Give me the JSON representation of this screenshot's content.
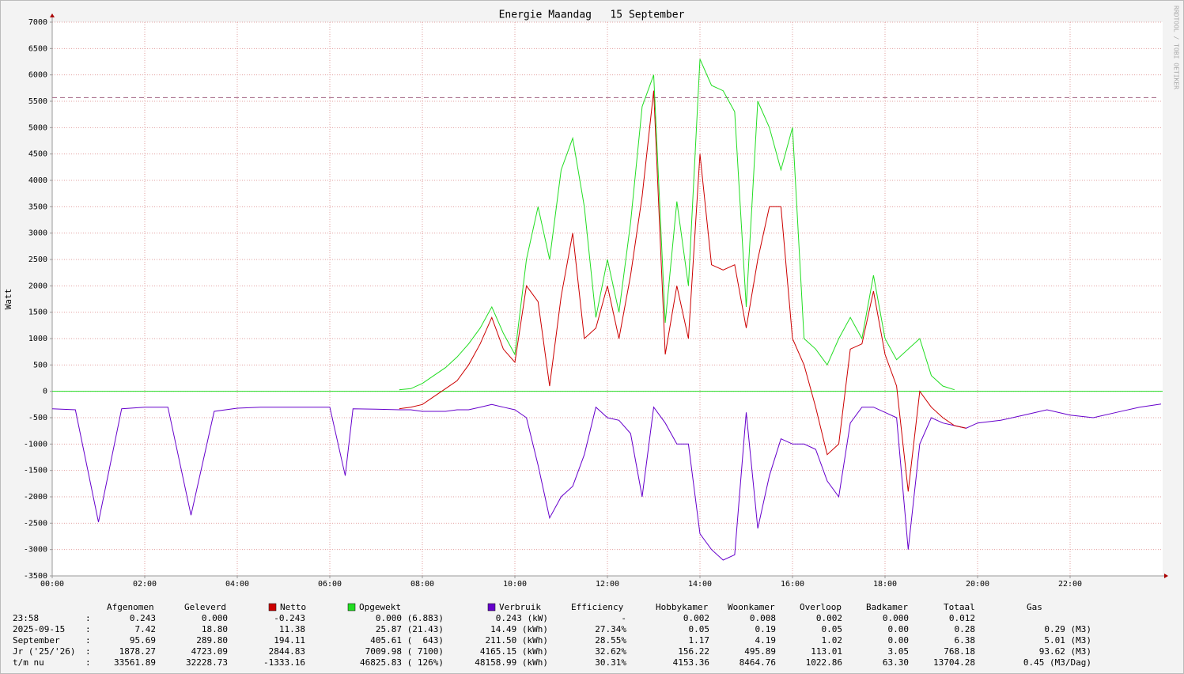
{
  "chart_data": {
    "type": "line",
    "title": "Energie Maandag   15 September",
    "y_label": "Watt",
    "side_label": "RRDTOOL / TOBI OETIKER",
    "x": [
      "00:00",
      "00:30",
      "01:00",
      "01:30",
      "02:00",
      "02:30",
      "03:00",
      "03:30",
      "04:00",
      "04:30",
      "05:00",
      "05:30",
      "06:00",
      "06:20",
      "06:30",
      "07:00",
      "07:30",
      "07:45",
      "08:00",
      "08:15",
      "08:30",
      "08:45",
      "09:00",
      "09:15",
      "09:30",
      "09:45",
      "10:00",
      "10:15",
      "10:30",
      "10:45",
      "11:00",
      "11:15",
      "11:30",
      "11:45",
      "12:00",
      "12:15",
      "12:30",
      "12:45",
      "13:00",
      "13:15",
      "13:30",
      "13:45",
      "14:00",
      "14:15",
      "14:30",
      "14:45",
      "15:00",
      "15:15",
      "15:30",
      "15:45",
      "16:00",
      "16:15",
      "16:30",
      "16:45",
      "17:00",
      "17:15",
      "17:30",
      "17:45",
      "18:00",
      "18:15",
      "18:30",
      "18:45",
      "19:00",
      "19:15",
      "19:30",
      "19:45",
      "20:00",
      "20:30",
      "21:00",
      "21:30",
      "22:00",
      "22:30",
      "23:00",
      "23:30",
      "23:58"
    ],
    "series": [
      {
        "name": "Netto",
        "color": "#cc0000",
        "values": [
          null,
          null,
          null,
          null,
          null,
          null,
          null,
          null,
          null,
          null,
          null,
          null,
          null,
          null,
          null,
          null,
          -330,
          -300,
          -250,
          -100,
          50,
          200,
          500,
          900,
          1400,
          800,
          550,
          2000,
          1700,
          100,
          1800,
          3000,
          1000,
          1200,
          2000,
          1000,
          2200,
          3700,
          5700,
          700,
          2000,
          1000,
          4500,
          2400,
          2300,
          2400,
          1200,
          2500,
          3500,
          3500,
          1000,
          500,
          -300,
          -1200,
          -1000,
          800,
          900,
          1900,
          700,
          100,
          -1900,
          0,
          -300,
          -500,
          -650,
          -700,
          null,
          null,
          null,
          null,
          null,
          null,
          null,
          null,
          null
        ]
      },
      {
        "name": "Opgewekt",
        "color": "#22dd22",
        "values": [
          null,
          null,
          null,
          null,
          null,
          null,
          null,
          null,
          null,
          null,
          null,
          null,
          null,
          null,
          null,
          null,
          30,
          50,
          150,
          300,
          450,
          650,
          900,
          1200,
          1600,
          1100,
          700,
          2500,
          3500,
          2500,
          4200,
          4800,
          3500,
          1400,
          2500,
          1500,
          3200,
          5400,
          6000,
          1300,
          3600,
          2000,
          6300,
          5800,
          5700,
          5300,
          1600,
          5500,
          5000,
          4200,
          5000,
          1000,
          800,
          500,
          1000,
          1400,
          1000,
          2200,
          1000,
          600,
          800,
          1000,
          300,
          100,
          30,
          null,
          null,
          null,
          null,
          null,
          null,
          null,
          null,
          null,
          null
        ]
      },
      {
        "name": "Verbruik",
        "color": "#6600cc",
        "values": [
          -330,
          -350,
          -2480,
          -330,
          -300,
          -300,
          -2350,
          -380,
          -320,
          -300,
          -300,
          -300,
          -300,
          -1600,
          -330,
          -340,
          -350,
          -350,
          -380,
          -380,
          -380,
          -350,
          -350,
          -300,
          -250,
          -300,
          -350,
          -500,
          -1400,
          -2400,
          -2000,
          -1800,
          -1200,
          -300,
          -500,
          -550,
          -800,
          -2000,
          -300,
          -600,
          -1000,
          -1000,
          -2700,
          -3000,
          -3200,
          -3100,
          -400,
          -2600,
          -1600,
          -900,
          -1000,
          -1000,
          -1100,
          -1700,
          -2000,
          -600,
          -300,
          -300,
          -400,
          -500,
          -3000,
          -1000,
          -500,
          -600,
          -650,
          -700,
          -600,
          -550,
          -450,
          -350,
          -450,
          -500,
          -400,
          -300,
          -240
        ]
      }
    ],
    "reference_line": 5570,
    "xlim": [
      "00:00",
      "24:00"
    ],
    "xticks": [
      "00:00",
      "02:00",
      "04:00",
      "06:00",
      "08:00",
      "10:00",
      "12:00",
      "14:00",
      "16:00",
      "18:00",
      "20:00",
      "22:00"
    ],
    "ylim": [
      -3500,
      7000
    ],
    "yticks": [
      -3500,
      -3000,
      -2500,
      -2000,
      -1500,
      -1000,
      -500,
      0,
      500,
      1000,
      1500,
      2000,
      2500,
      3000,
      3500,
      4000,
      4500,
      5000,
      5500,
      6000,
      6500,
      7000
    ],
    "grid": true
  },
  "table": {
    "headers": [
      "Afgenomen",
      "Geleverd",
      "Efficiency",
      "Hobbykamer",
      "Woonkamer",
      "Overloop",
      "Badkamer",
      "Totaal",
      "Gas"
    ],
    "separator": ":",
    "rows": [
      {
        "label": "23:58",
        "cells": [
          "0.243",
          "0.000",
          "-0.243",
          "0.000 (6.883)",
          "0.243 (kW)",
          "-",
          "0.002",
          "0.008",
          "0.002",
          "0.000",
          "0.012"
        ]
      },
      {
        "label": "2025-09-15",
        "cells": [
          "7.42",
          "18.80",
          "11.38",
          "25.87 (21.43)",
          "14.49 (kWh)",
          "27.34%",
          "0.05",
          "0.19",
          "0.05",
          "0.00",
          "0.28",
          "0.29 (M3)"
        ]
      },
      {
        "label": "September",
        "cells": [
          "95.69",
          "289.80",
          "194.11",
          "405.61 (  643)",
          "211.50 (kWh)",
          "28.55%",
          "1.17",
          "4.19",
          "1.02",
          "0.00",
          "6.38",
          "5.01 (M3)"
        ]
      },
      {
        "label": "Jr ('25/'26)",
        "cells": [
          "1878.27",
          "4723.09",
          "2844.83",
          "7009.98 ( 7100)",
          "4165.15 (kWh)",
          "32.62%",
          "156.22",
          "495.89",
          "113.01",
          "3.05",
          "768.18",
          "93.62 (M3)"
        ]
      },
      {
        "label": "t/m nu",
        "cells": [
          "33561.89",
          "32228.73",
          "-1333.16",
          "46825.83 ( 126%)",
          "48158.99 (kWh)",
          "30.31%",
          "4153.36",
          "8464.76",
          "1022.86",
          "63.30",
          "13704.28",
          "0.45 (M3/Dag)"
        ]
      }
    ]
  }
}
